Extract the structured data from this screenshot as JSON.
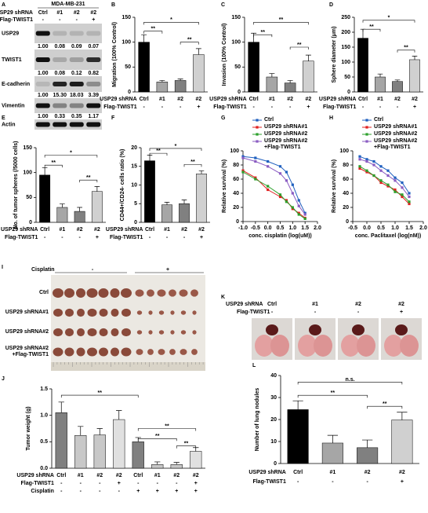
{
  "blot": {
    "panel": "A",
    "title": "MDA-MB-231",
    "header": [
      {
        "name": "USP29 shRNA",
        "labels": [
          "Ctrl",
          "#1",
          "#2",
          "#2"
        ]
      },
      {
        "name": "Flag-TWIST1",
        "labels": [
          "-",
          "-",
          "-",
          "+"
        ]
      }
    ],
    "rows": [
      {
        "name": "USP29",
        "quant": [
          "1.00",
          "0.08",
          "0.09",
          "0.07"
        ]
      },
      {
        "name": "TWIST1",
        "quant": [
          "1.00",
          "0.08",
          "0.12",
          "0.82"
        ]
      },
      {
        "name": "E-cadherin",
        "quant": [
          "1.00",
          "15.30",
          "18.03",
          "3.39"
        ]
      },
      {
        "name": "Vimentin",
        "quant": [
          "1.00",
          "0.33",
          "0.35",
          "1.17"
        ]
      },
      {
        "name": "Actin"
      }
    ]
  },
  "tumor_photo": {
    "panel": "I",
    "treatment": "Cisplatin",
    "treatment_labels": [
      "-",
      "+"
    ],
    "rows": [
      "Ctrl",
      "USP29 shRNA#1",
      "USP29 shRNA#2",
      "USP29 shRNA#2 +Flag-TWIST1"
    ]
  },
  "lung_photo": {
    "panel": "K",
    "header": [
      {
        "name": "USP29 shRNA",
        "labels": [
          "Ctrl",
          "#1",
          "#2",
          "#2"
        ]
      },
      {
        "name": "Flag-TWIST1",
        "labels": [
          "-",
          "-",
          "-",
          "+"
        ]
      }
    ]
  },
  "chart_data": [
    {
      "type": "bar",
      "panel": "B",
      "ylabel": "Migration (100% Control)",
      "xlabel": "USP29 shRNA",
      "categories": [
        "Ctrl",
        "#1",
        "#2",
        "#2"
      ],
      "groups": [
        {
          "name": "Flag-TWIST1",
          "labels": [
            "-",
            "-",
            "-",
            "+"
          ]
        }
      ],
      "values": [
        100,
        20,
        23,
        75
      ],
      "errors": [
        15,
        3,
        3,
        12
      ],
      "colors": [
        "#000000",
        "#a6a6a6",
        "#808080",
        "#d0d0d0"
      ],
      "ylim": [
        0,
        150
      ],
      "yticks": [
        0,
        50,
        100,
        150
      ],
      "annotations": [
        "**",
        "*",
        "**"
      ]
    },
    {
      "type": "bar",
      "panel": "C",
      "ylabel": "Invasion (100% Control)",
      "xlabel": "USP29 shRNA",
      "categories": [
        "Ctrl",
        "#1",
        "#2",
        "#2"
      ],
      "groups": [
        {
          "name": "Flag-TWIST1",
          "labels": [
            "-",
            "-",
            "-",
            "+"
          ]
        }
      ],
      "values": [
        100,
        30,
        18,
        62
      ],
      "errors": [
        18,
        7,
        5,
        12
      ],
      "colors": [
        "#000000",
        "#a6a6a6",
        "#808080",
        "#d0d0d0"
      ],
      "ylim": [
        0,
        150
      ],
      "yticks": [
        0,
        50,
        100,
        150
      ],
      "annotations": [
        "**",
        "**",
        "**"
      ]
    },
    {
      "type": "bar",
      "panel": "D",
      "ylabel": "Sphere diameter (μm)",
      "xlabel": "USP29 shRNA",
      "categories": [
        "Ctrl",
        "#1",
        "#2",
        "#2"
      ],
      "groups": [
        {
          "name": "Flag-TWIST1",
          "labels": [
            "-",
            "-",
            "-",
            "+"
          ]
        }
      ],
      "values": [
        180,
        50,
        35,
        108
      ],
      "errors": [
        30,
        10,
        5,
        12
      ],
      "colors": [
        "#000000",
        "#a6a6a6",
        "#808080",
        "#d0d0d0"
      ],
      "ylim": [
        0,
        250
      ],
      "yticks": [
        0,
        50,
        100,
        150,
        200,
        250
      ],
      "annotations": [
        "*",
        "**",
        "**"
      ]
    },
    {
      "type": "bar",
      "panel": "E",
      "ylabel": "No. of tumor spheres (/5000 cells)",
      "xlabel": "USP29 shRNA",
      "categories": [
        "Ctrl",
        "#1",
        "#2",
        "#2"
      ],
      "groups": [
        {
          "name": "Flag-TWIST1",
          "labels": [
            "-",
            "-",
            "-",
            "+"
          ]
        }
      ],
      "values": [
        95,
        30,
        22,
        62
      ],
      "errors": [
        15,
        7,
        8,
        10
      ],
      "colors": [
        "#000000",
        "#a6a6a6",
        "#808080",
        "#d0d0d0"
      ],
      "ylim": [
        0,
        150
      ],
      "yticks": [
        0,
        50,
        100,
        150
      ],
      "annotations": [
        "**",
        "*",
        "**"
      ]
    },
    {
      "type": "bar",
      "panel": "F",
      "ylabel": "CD44+/CD24- cells ratio (%)",
      "xlabel": "USP29 shRNA",
      "categories": [
        "Ctrl",
        "#1",
        "#2",
        "#2"
      ],
      "groups": [
        {
          "name": "Flag-TWIST1",
          "labels": [
            "-",
            "-",
            "-",
            "+"
          ]
        }
      ],
      "values": [
        16.5,
        4.7,
        5,
        13
      ],
      "errors": [
        1.5,
        0.7,
        1,
        0.8
      ],
      "colors": [
        "#000000",
        "#a6a6a6",
        "#808080",
        "#d0d0d0"
      ],
      "ylim": [
        0,
        20
      ],
      "yticks": [
        0,
        5,
        10,
        15,
        20
      ],
      "annotations": [
        "**",
        "*",
        "**"
      ]
    },
    {
      "type": "line",
      "panel": "G",
      "ylabel": "Relative survival (%)",
      "xlabel": "conc. cisplatin (log(uM))",
      "x": [
        -1,
        -0.5,
        0,
        0.5,
        0.75,
        1,
        1.25,
        1.5
      ],
      "xlim": [
        -1,
        2
      ],
      "xticks": [
        {
          "value": -1,
          "label": "-1.0"
        },
        -0.5,
        {
          "value": 0,
          "label": "0.0"
        },
        0.5,
        {
          "value": 1,
          "label": "1.0"
        },
        1.5,
        {
          "value": 2,
          "label": "2.0"
        }
      ],
      "ylim": [
        0,
        100
      ],
      "yticks": [
        0,
        20,
        40,
        60,
        80,
        100
      ],
      "series": [
        {
          "name": "Ctrl",
          "color": "#1f5fbf",
          "values": [
            92,
            90,
            85,
            78,
            70,
            52,
            30,
            12
          ]
        },
        {
          "name": "USP29 shRNA#1",
          "color": "#e02020",
          "values": [
            72,
            62,
            45,
            35,
            30,
            18,
            12,
            5
          ]
        },
        {
          "name": "USP29 shRNA#2",
          "color": "#2ca02c",
          "values": [
            70,
            60,
            50,
            38,
            28,
            20,
            10,
            4
          ]
        },
        {
          "name": "USP29 shRNA#2 +Flag-TWIST1",
          "color": "#8a5cc2",
          "values": [
            90,
            85,
            78,
            68,
            58,
            40,
            22,
            10
          ]
        }
      ]
    },
    {
      "type": "line",
      "panel": "H",
      "ylabel": "Relative survival (%)",
      "xlabel": "conc. Paclitaxel (log(nM))",
      "x": [
        -0.25,
        0,
        0.25,
        0.5,
        0.75,
        1,
        1.25,
        1.5
      ],
      "xlim": [
        -0.5,
        2
      ],
      "xticks": [
        -0.5,
        {
          "value": 0,
          "label": "0.0"
        },
        0.5,
        {
          "value": 1,
          "label": "1.0"
        },
        1.5,
        {
          "value": 2,
          "label": "2.0"
        }
      ],
      "ylim": [
        0,
        100
      ],
      "yticks": [
        0,
        20,
        40,
        60,
        80,
        100
      ],
      "series": [
        {
          "name": "Ctrl",
          "color": "#1f5fbf",
          "values": [
            92,
            88,
            85,
            78,
            72,
            62,
            55,
            40
          ]
        },
        {
          "name": "USP29 shRNA#1",
          "color": "#e02020",
          "values": [
            75,
            70,
            65,
            55,
            50,
            45,
            35,
            25
          ]
        },
        {
          "name": "USP29 shRNA#2",
          "color": "#2ca02c",
          "values": [
            78,
            72,
            65,
            58,
            52,
            42,
            38,
            28
          ]
        },
        {
          "name": "USP29 shRNA#2 +Flag-TWIST1",
          "color": "#8a5cc2",
          "values": [
            88,
            85,
            80,
            72,
            65,
            58,
            48,
            35
          ]
        }
      ]
    },
    {
      "type": "bar",
      "panel": "J",
      "ylabel": "Tumor weight (g)",
      "xlabel": "USP29 shRNA",
      "categories": [
        "Ctrl",
        "#1",
        "#2",
        "#2",
        "Ctrl",
        "#1",
        "#2",
        "#2"
      ],
      "groups": [
        {
          "name": "Flag-TWIST1",
          "labels": [
            "-",
            "-",
            "-",
            "+",
            "-",
            "-",
            "-",
            "+"
          ]
        },
        {
          "name": "Cisplatin",
          "labels": [
            "-",
            "-",
            "-",
            "-",
            "+",
            "+",
            "+",
            "+"
          ]
        }
      ],
      "values": [
        1.05,
        0.62,
        0.63,
        0.92,
        0.5,
        0.07,
        0.07,
        0.32
      ],
      "errors": [
        0.2,
        0.17,
        0.12,
        0.17,
        0.08,
        0.05,
        0.04,
        0.07
      ],
      "colors": [
        "#808080",
        "#c8c8c8",
        "#c8c8c8",
        "#e0e0e0",
        "#808080",
        "#c8c8c8",
        "#c8c8c8",
        "#e0e0e0"
      ],
      "ylim": [
        0,
        1.5
      ],
      "yticks": [
        {
          "value": 0,
          "label": "0.0"
        },
        0.5,
        {
          "value": 1,
          "label": "1.0"
        },
        1.5
      ],
      "annotations": [
        "**",
        "**",
        "**",
        "**"
      ]
    },
    {
      "type": "bar",
      "panel": "L",
      "ylabel": "Number of lung nodules",
      "xlabel": "USP29 shRNA",
      "categories": [
        "Ctrl",
        "#1",
        "#2",
        "#2"
      ],
      "groups": [
        {
          "name": "Flag-TWIST1",
          "labels": [
            "-",
            "-",
            "-",
            "+"
          ]
        }
      ],
      "values": [
        24.5,
        9.3,
        7.2,
        19.8
      ],
      "errors": [
        4,
        3.5,
        3.5,
        3.5
      ],
      "colors": [
        "#000000",
        "#a6a6a6",
        "#808080",
        "#d0d0d0"
      ],
      "ylim": [
        0,
        40
      ],
      "yticks": [
        0,
        10,
        20,
        30,
        40
      ],
      "annotations": [
        "n.s.",
        "**",
        "**"
      ]
    }
  ]
}
